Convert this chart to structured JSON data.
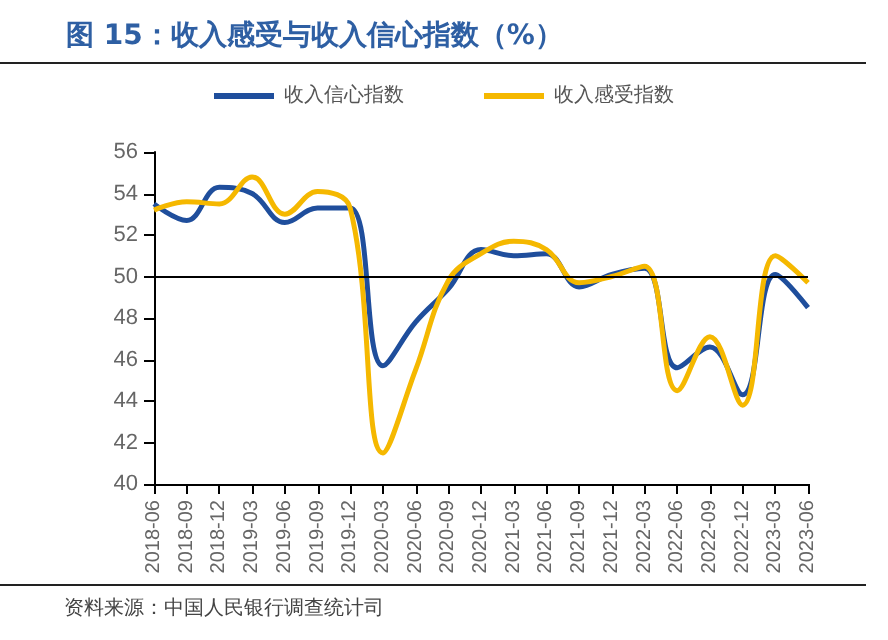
{
  "chart_data": {
    "type": "line",
    "title": "图 15：收入感受与收入信心指数（%）",
    "annotations": [
      "资料来源：中国人民银行调查统计司"
    ],
    "categories": [
      "2018-06",
      "2018-09",
      "2018-12",
      "2019-03",
      "2019-06",
      "2019-09",
      "2019-12",
      "2020-03",
      "2020-06",
      "2020-09",
      "2020-12",
      "2021-03",
      "2021-06",
      "2021-09",
      "2021-12",
      "2022-03",
      "2022-06",
      "2022-09",
      "2022-12",
      "2023-03",
      "2023-06"
    ],
    "series": [
      {
        "name": "收入信心指数",
        "color": "#1f4e9c",
        "values": [
          53.5,
          52.7,
          54.3,
          54.0,
          52.6,
          53.3,
          53.3,
          45.7,
          47.8,
          49.4,
          51.3,
          51.0,
          51.1,
          49.5,
          50.1,
          50.4,
          45.6,
          46.6,
          44.3,
          50.1,
          48.5
        ]
      },
      {
        "name": "收入感受指数",
        "color": "#f5b800",
        "values": [
          53.2,
          53.6,
          53.5,
          54.8,
          53.0,
          54.1,
          53.3,
          41.5,
          45.5,
          49.8,
          51.1,
          51.7,
          51.3,
          49.7,
          50.0,
          50.5,
          44.5,
          47.1,
          43.8,
          51.0,
          49.7
        ]
      }
    ],
    "ylim": [
      40,
      56
    ],
    "yticks": [
      40,
      42,
      44,
      46,
      48,
      50,
      52,
      54,
      56
    ],
    "ref_lines": [
      {
        "axis": "y",
        "value": 50,
        "color": "#000000",
        "line_style": "solid"
      }
    ],
    "grid": false,
    "legend": "top",
    "marker": "none",
    "line_style": "solid"
  }
}
